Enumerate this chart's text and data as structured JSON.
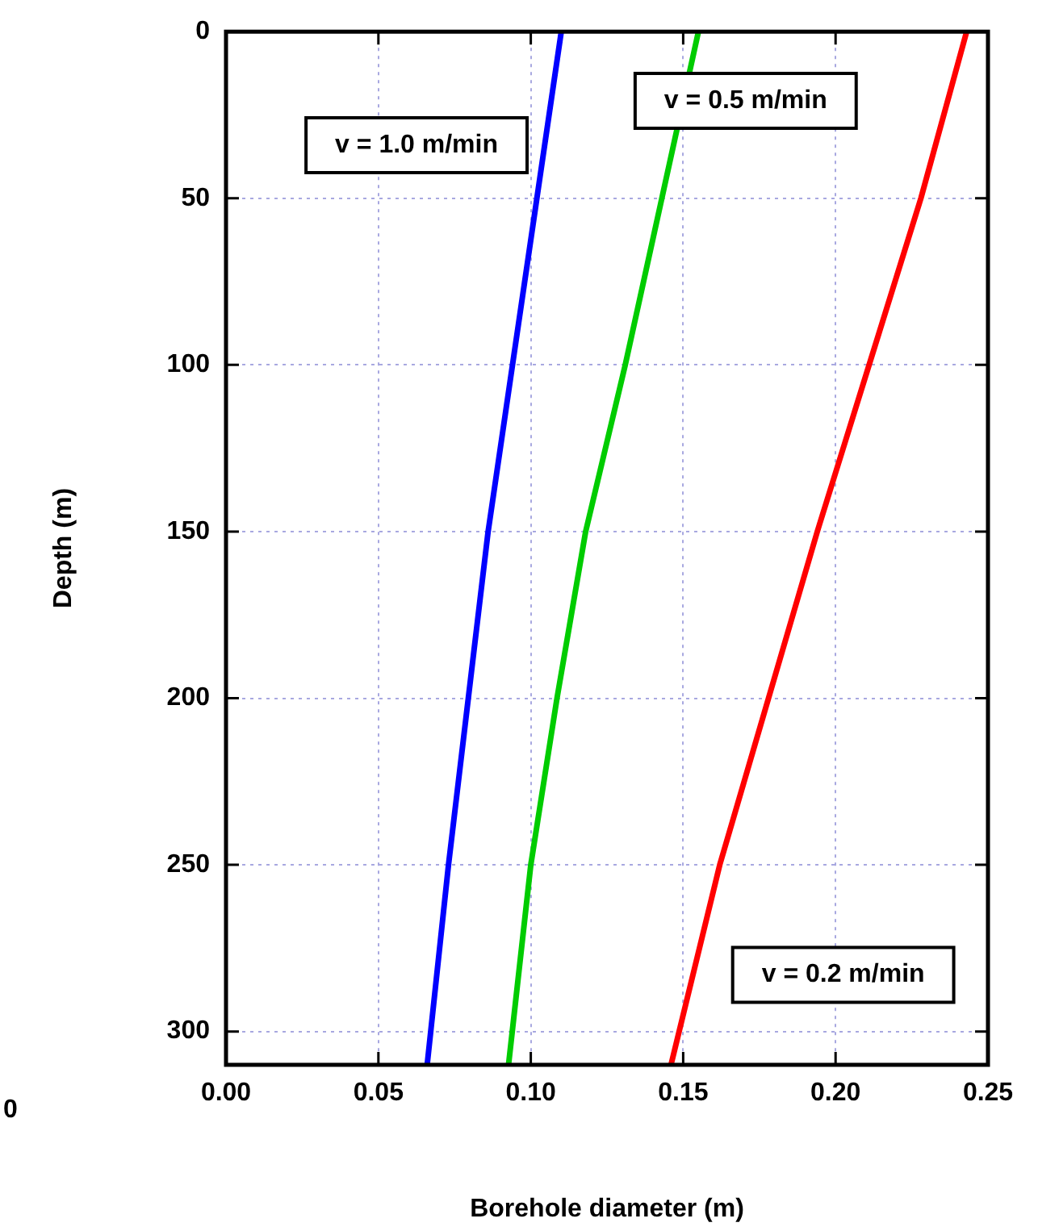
{
  "chart_data": {
    "type": "line",
    "xlabel": "Borehole diameter (m)",
    "ylabel": "Depth (m)",
    "xlim": [
      0,
      0.25
    ],
    "xticks": [
      {
        "value": 0,
        "label": "0.00"
      },
      {
        "value": 0.05,
        "label": "0.05"
      },
      {
        "value": 0.1,
        "label": "0.10"
      },
      {
        "value": 0.15,
        "label": "0.15"
      },
      {
        "value": 0.2,
        "label": "0.20"
      },
      {
        "value": 0.25,
        "label": "0.25"
      }
    ],
    "ylim": [
      310,
      0
    ],
    "yticks": [
      0,
      50,
      100,
      150,
      200,
      250,
      300
    ],
    "grid": true,
    "legend": false,
    "marker": "none",
    "line_style": "solid",
    "annotations": [
      "0"
    ],
    "series": [
      {
        "name": "v = 1.0 m/min",
        "color": "#0000ff",
        "x": [
          0.11,
          0.102,
          0.094,
          0.086,
          0.0795,
          0.073,
          0.066
        ],
        "values": [
          0,
          50,
          100,
          150,
          200,
          250,
          310
        ]
      },
      {
        "name": "v = 0.5 m/min",
        "color": "#00cc00",
        "x": [
          0.155,
          0.143,
          0.131,
          0.118,
          0.1086,
          0.1,
          0.0927
        ],
        "values": [
          0,
          50,
          100,
          150,
          200,
          250,
          310
        ]
      },
      {
        "name": "v = 0.2 m/min",
        "color": "#ff0000",
        "x": [
          0.243,
          0.228,
          0.211,
          0.194,
          0.178,
          0.162,
          0.146
        ],
        "values": [
          0,
          50,
          100,
          150,
          200,
          250,
          310
        ]
      }
    ]
  }
}
